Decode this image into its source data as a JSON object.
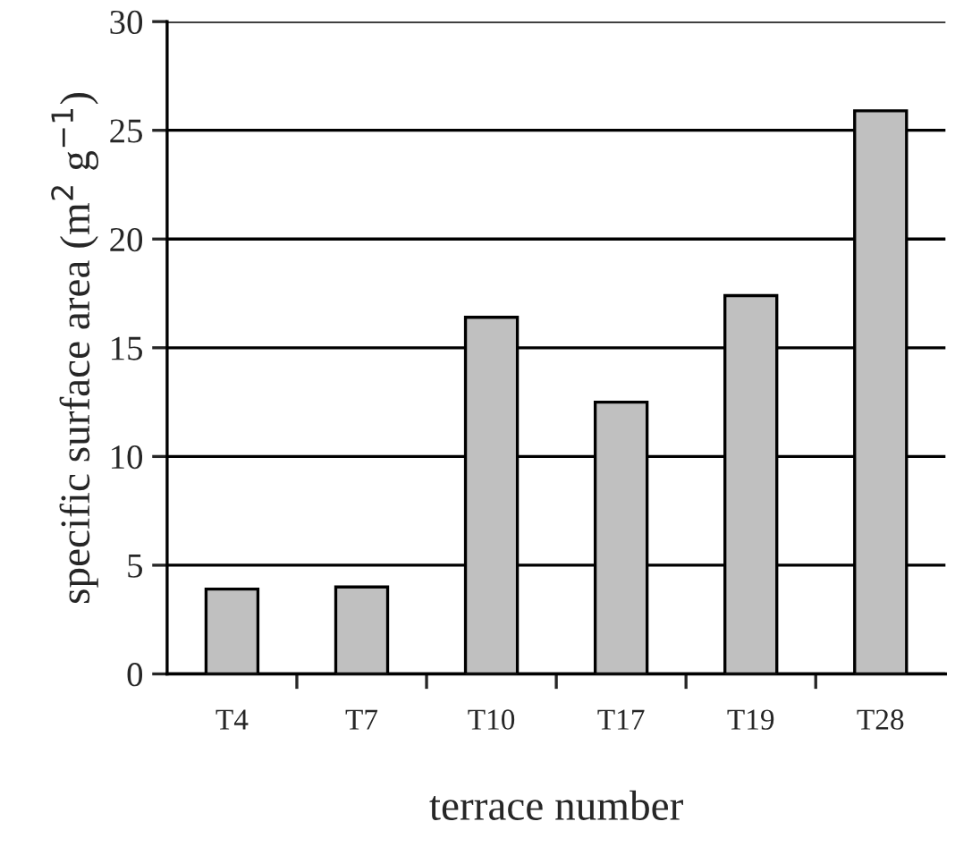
{
  "chart_data": {
    "type": "bar",
    "xlabel": "terrace number",
    "ylabel": "specific surface area (m$^{2}$ g$^{−1}$)",
    "categories": [
      "T4",
      "T7",
      "T10",
      "T17",
      "T19",
      "T28"
    ],
    "values": [
      3.9,
      4.0,
      16.4,
      12.5,
      17.4,
      25.9
    ],
    "color": "#c0c0c0",
    "ylim": [
      0,
      30
    ],
    "yticks": [
      0,
      5,
      10,
      15,
      20,
      25,
      30
    ],
    "grid": "y",
    "legend": false
  }
}
